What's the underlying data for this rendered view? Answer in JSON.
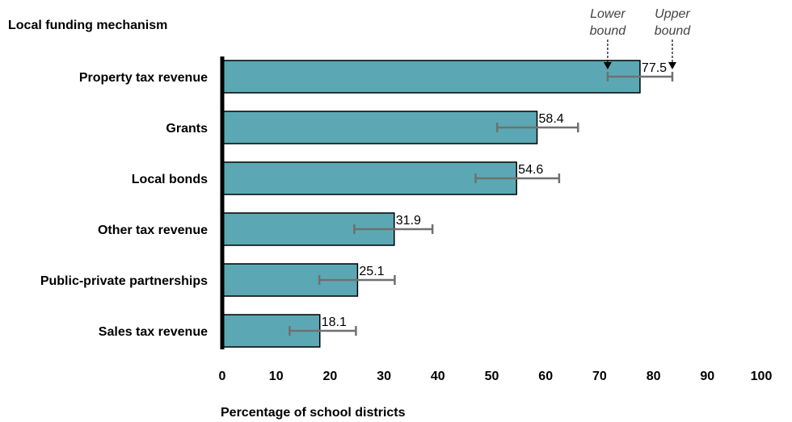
{
  "chart_data": {
    "type": "bar",
    "orientation": "horizontal",
    "title": "",
    "category_axis_title": "Local funding mechanism",
    "xlabel": "Percentage of school districts",
    "xlim": [
      0,
      100
    ],
    "xticks": [
      0,
      10,
      20,
      30,
      40,
      50,
      60,
      70,
      80,
      90,
      100
    ],
    "categories": [
      "Property tax revenue",
      "Grants",
      "Local bonds",
      "Other tax revenue",
      "Public-private partnerships",
      "Sales tax revenue"
    ],
    "values": [
      77.5,
      58.4,
      54.6,
      31.9,
      25.1,
      18.1
    ],
    "value_labels": [
      "77.5",
      "58.4",
      "54.6",
      "31.9",
      "25.1",
      "18.1"
    ],
    "lower_bounds": [
      71.5,
      51.0,
      47.0,
      24.5,
      18.0,
      12.5
    ],
    "upper_bounds": [
      83.5,
      66.0,
      62.5,
      39.0,
      32.0,
      24.8
    ],
    "annotations": {
      "lower_bound_label": [
        "Lower",
        "bound"
      ],
      "upper_bound_label": [
        "Upper",
        "bound"
      ]
    },
    "grid": false,
    "colors": {
      "bar_fill": "#5ba8b4",
      "bar_stroke": "#000000",
      "error_bar": "#707070",
      "axis": "#000000"
    }
  }
}
